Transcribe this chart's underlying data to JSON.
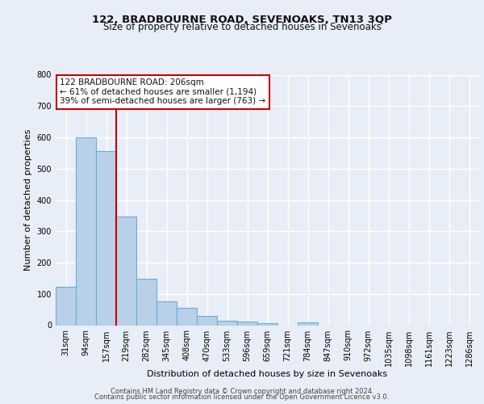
{
  "title": "122, BRADBOURNE ROAD, SEVENOAKS, TN13 3QP",
  "subtitle": "Size of property relative to detached houses in Sevenoaks",
  "xlabel": "Distribution of detached houses by size in Sevenoaks",
  "ylabel": "Number of detached properties",
  "footer_line1": "Contains HM Land Registry data © Crown copyright and database right 2024.",
  "footer_line2": "Contains public sector information licensed under the Open Government Licence v3.0.",
  "categories": [
    "31sqm",
    "94sqm",
    "157sqm",
    "219sqm",
    "282sqm",
    "345sqm",
    "408sqm",
    "470sqm",
    "533sqm",
    "596sqm",
    "659sqm",
    "721sqm",
    "784sqm",
    "847sqm",
    "910sqm",
    "972sqm",
    "1035sqm",
    "1098sqm",
    "1161sqm",
    "1223sqm",
    "1286sqm"
  ],
  "values": [
    122,
    601,
    556,
    347,
    148,
    75,
    55,
    30,
    13,
    11,
    7,
    0,
    8,
    0,
    0,
    0,
    0,
    0,
    0,
    0,
    0
  ],
  "bar_color": "#b8d0e8",
  "bar_edge_color": "#6aaed6",
  "red_line_x": 2.5,
  "annotation_text": "122 BRADBOURNE ROAD: 206sqm\n← 61% of detached houses are smaller (1,194)\n39% of semi-detached houses are larger (763) →",
  "annotation_box_color": "#ffffff",
  "annotation_box_edge_color": "#cc0000",
  "ylim": [
    0,
    800
  ],
  "yticks": [
    0,
    100,
    200,
    300,
    400,
    500,
    600,
    700,
    800
  ],
  "background_color": "#e8eef7",
  "axes_bg_color": "#e8eef7",
  "grid_color": "#ffffff",
  "title_fontsize": 9.5,
  "subtitle_fontsize": 8.5,
  "xlabel_fontsize": 8,
  "ylabel_fontsize": 8,
  "tick_fontsize": 7,
  "footer_fontsize": 6,
  "ann_fontsize": 7.5
}
